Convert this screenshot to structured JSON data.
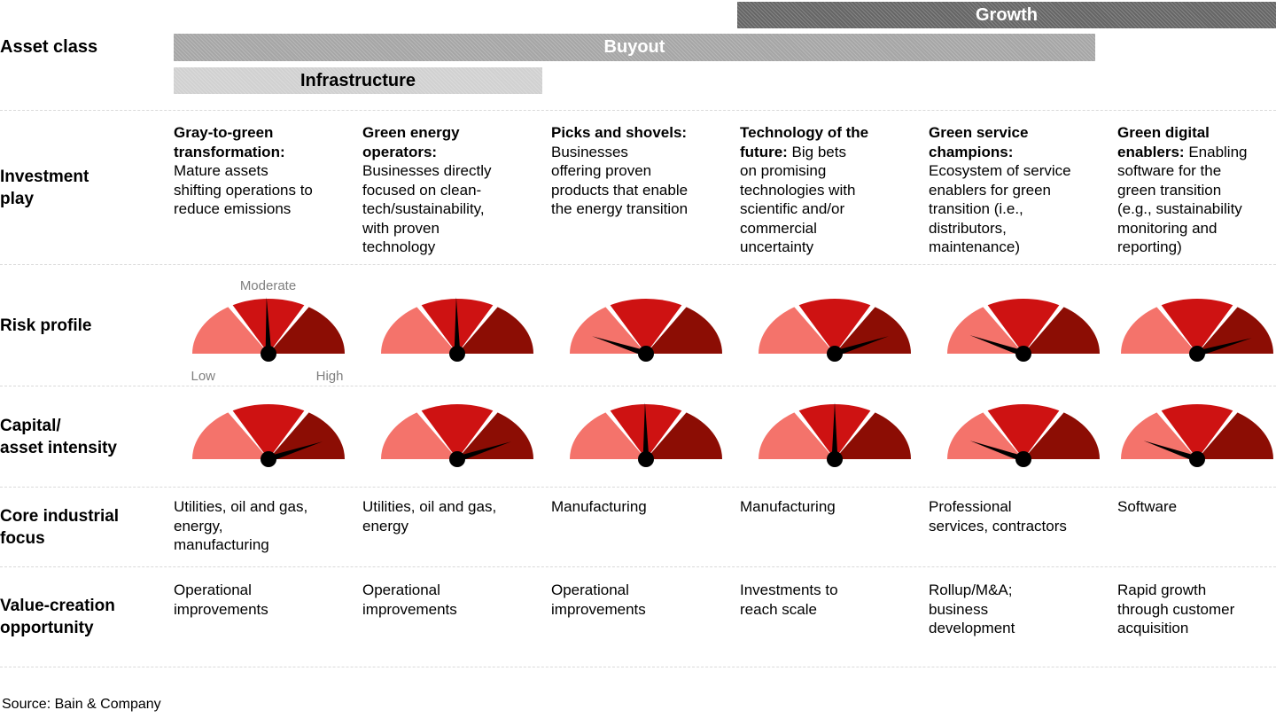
{
  "asset_class": {
    "row_label": "Asset class",
    "bars": [
      {
        "id": "growth",
        "label": "Growth",
        "color": "#666666",
        "text_color": "#FFFFFF"
      },
      {
        "id": "buyout",
        "label": "Buyout",
        "color": "#A6A6A6",
        "text_color": "#FFFFFF"
      },
      {
        "id": "infrastructure",
        "label": "Infrastructure",
        "color": "#D1D1D1",
        "text_color": "#000000"
      }
    ]
  },
  "colors": {
    "gauge_low": "#F4736B",
    "gauge_mid": "#CE1212",
    "gauge_high": "#8C0D04",
    "needle": "#000000",
    "scale_label": "#7F7F7F"
  },
  "investment_play": {
    "row_label": "Investment\nplay",
    "cells": [
      {
        "lead": "Gray-to-green\ntransformation:",
        "rest": "\nMature assets\nshifting operations to\nreduce emissions"
      },
      {
        "lead": "Green energy\noperators:",
        "rest": "\nBusinesses directly\nfocused on clean-\ntech/sustainability,\nwith proven\ntechnology"
      },
      {
        "lead": "Picks and shovels:",
        "rest": "\nBusinesses\noffering proven\nproducts that enable\nthe energy transition"
      },
      {
        "lead": "Technology of the\nfuture:",
        "rest": " Big bets\non promising\ntechnologies with\nscientific and/or\ncommercial\nuncertainty"
      },
      {
        "lead": "Green service\nchampions:",
        "rest": "\nEcosystem of service\nenablers for green\ntransition (i.e.,\ndistributors,\nmaintenance)"
      },
      {
        "lead": "Green digital\nenablers:",
        "rest": " Enabling\nsoftware for the\ngreen transition\n(e.g., sustainability\nmonitoring and\nreporting)"
      }
    ]
  },
  "risk_profile": {
    "row_label": "Risk profile",
    "scale": {
      "top": "Moderate",
      "left": "Low",
      "right": "High"
    },
    "gauges": [
      {
        "angle_deg": 92,
        "level": "Moderate"
      },
      {
        "angle_deg": 91,
        "level": "Moderate"
      },
      {
        "angle_deg": 162,
        "level": "Low"
      },
      {
        "angle_deg": 18,
        "level": "High"
      },
      {
        "angle_deg": 161,
        "level": "Low"
      },
      {
        "angle_deg": 16,
        "level": "High"
      }
    ]
  },
  "capital_asset_intensity": {
    "row_label": "Capital/\nasset intensity",
    "gauges": [
      {
        "angle_deg": 18,
        "level": "High"
      },
      {
        "angle_deg": 18,
        "level": "High"
      },
      {
        "angle_deg": 91,
        "level": "Moderate"
      },
      {
        "angle_deg": 90,
        "level": "Moderate"
      },
      {
        "angle_deg": 161,
        "level": "Low"
      },
      {
        "angle_deg": 161,
        "level": "Low"
      }
    ]
  },
  "core_industrial_focus": {
    "row_label": "Core industrial\nfocus",
    "cells": [
      "Utilities, oil and gas,\nenergy,\nmanufacturing",
      "Utilities, oil and gas,\nenergy",
      "Manufacturing",
      "Manufacturing",
      "Professional\nservices, contractors",
      "Software"
    ]
  },
  "value_creation_opportunity": {
    "row_label": "Value-creation\nopportunity",
    "cells": [
      "Operational\nimprovements",
      "Operational\nimprovements",
      "Operational\nimprovements",
      "Investments to\nreach scale",
      "Rollup/M&A;\nbusiness\ndevelopment",
      "Rapid growth\nthrough customer\nacquisition"
    ]
  },
  "source": "Source: Bain & Company",
  "chart_data": {
    "type": "table",
    "columns": [
      "Gray-to-green transformation",
      "Green energy operators",
      "Picks and shovels",
      "Technology of the future",
      "Green service champions",
      "Green digital enablers"
    ],
    "asset_class_coverage": [
      {
        "label": "Growth",
        "columns": [
          4,
          5,
          6
        ]
      },
      {
        "label": "Buyout",
        "columns": [
          1,
          2,
          3,
          4,
          5
        ]
      },
      {
        "label": "Infrastructure",
        "columns": [
          1,
          2
        ]
      }
    ],
    "gauge_scale": [
      "Low",
      "Moderate",
      "High"
    ],
    "rows": [
      {
        "label": "Risk profile",
        "type": "gauge",
        "values": [
          "Moderate",
          "Moderate",
          "Low",
          "High",
          "Low",
          "High"
        ],
        "needle_angles_deg": [
          92,
          91,
          162,
          18,
          161,
          16
        ]
      },
      {
        "label": "Capital/asset intensity",
        "type": "gauge",
        "values": [
          "High",
          "High",
          "Moderate",
          "Moderate",
          "Low",
          "Low"
        ],
        "needle_angles_deg": [
          18,
          18,
          91,
          90,
          161,
          161
        ]
      },
      {
        "label": "Core industrial focus",
        "type": "text",
        "values": [
          "Utilities, oil and gas, energy, manufacturing",
          "Utilities, oil and gas, energy",
          "Manufacturing",
          "Manufacturing",
          "Professional services, contractors",
          "Software"
        ]
      },
      {
        "label": "Value-creation opportunity",
        "type": "text",
        "values": [
          "Operational improvements",
          "Operational improvements",
          "Operational improvements",
          "Investments to reach scale",
          "Rollup/M&A; business development",
          "Rapid growth through customer acquisition"
        ]
      }
    ]
  }
}
